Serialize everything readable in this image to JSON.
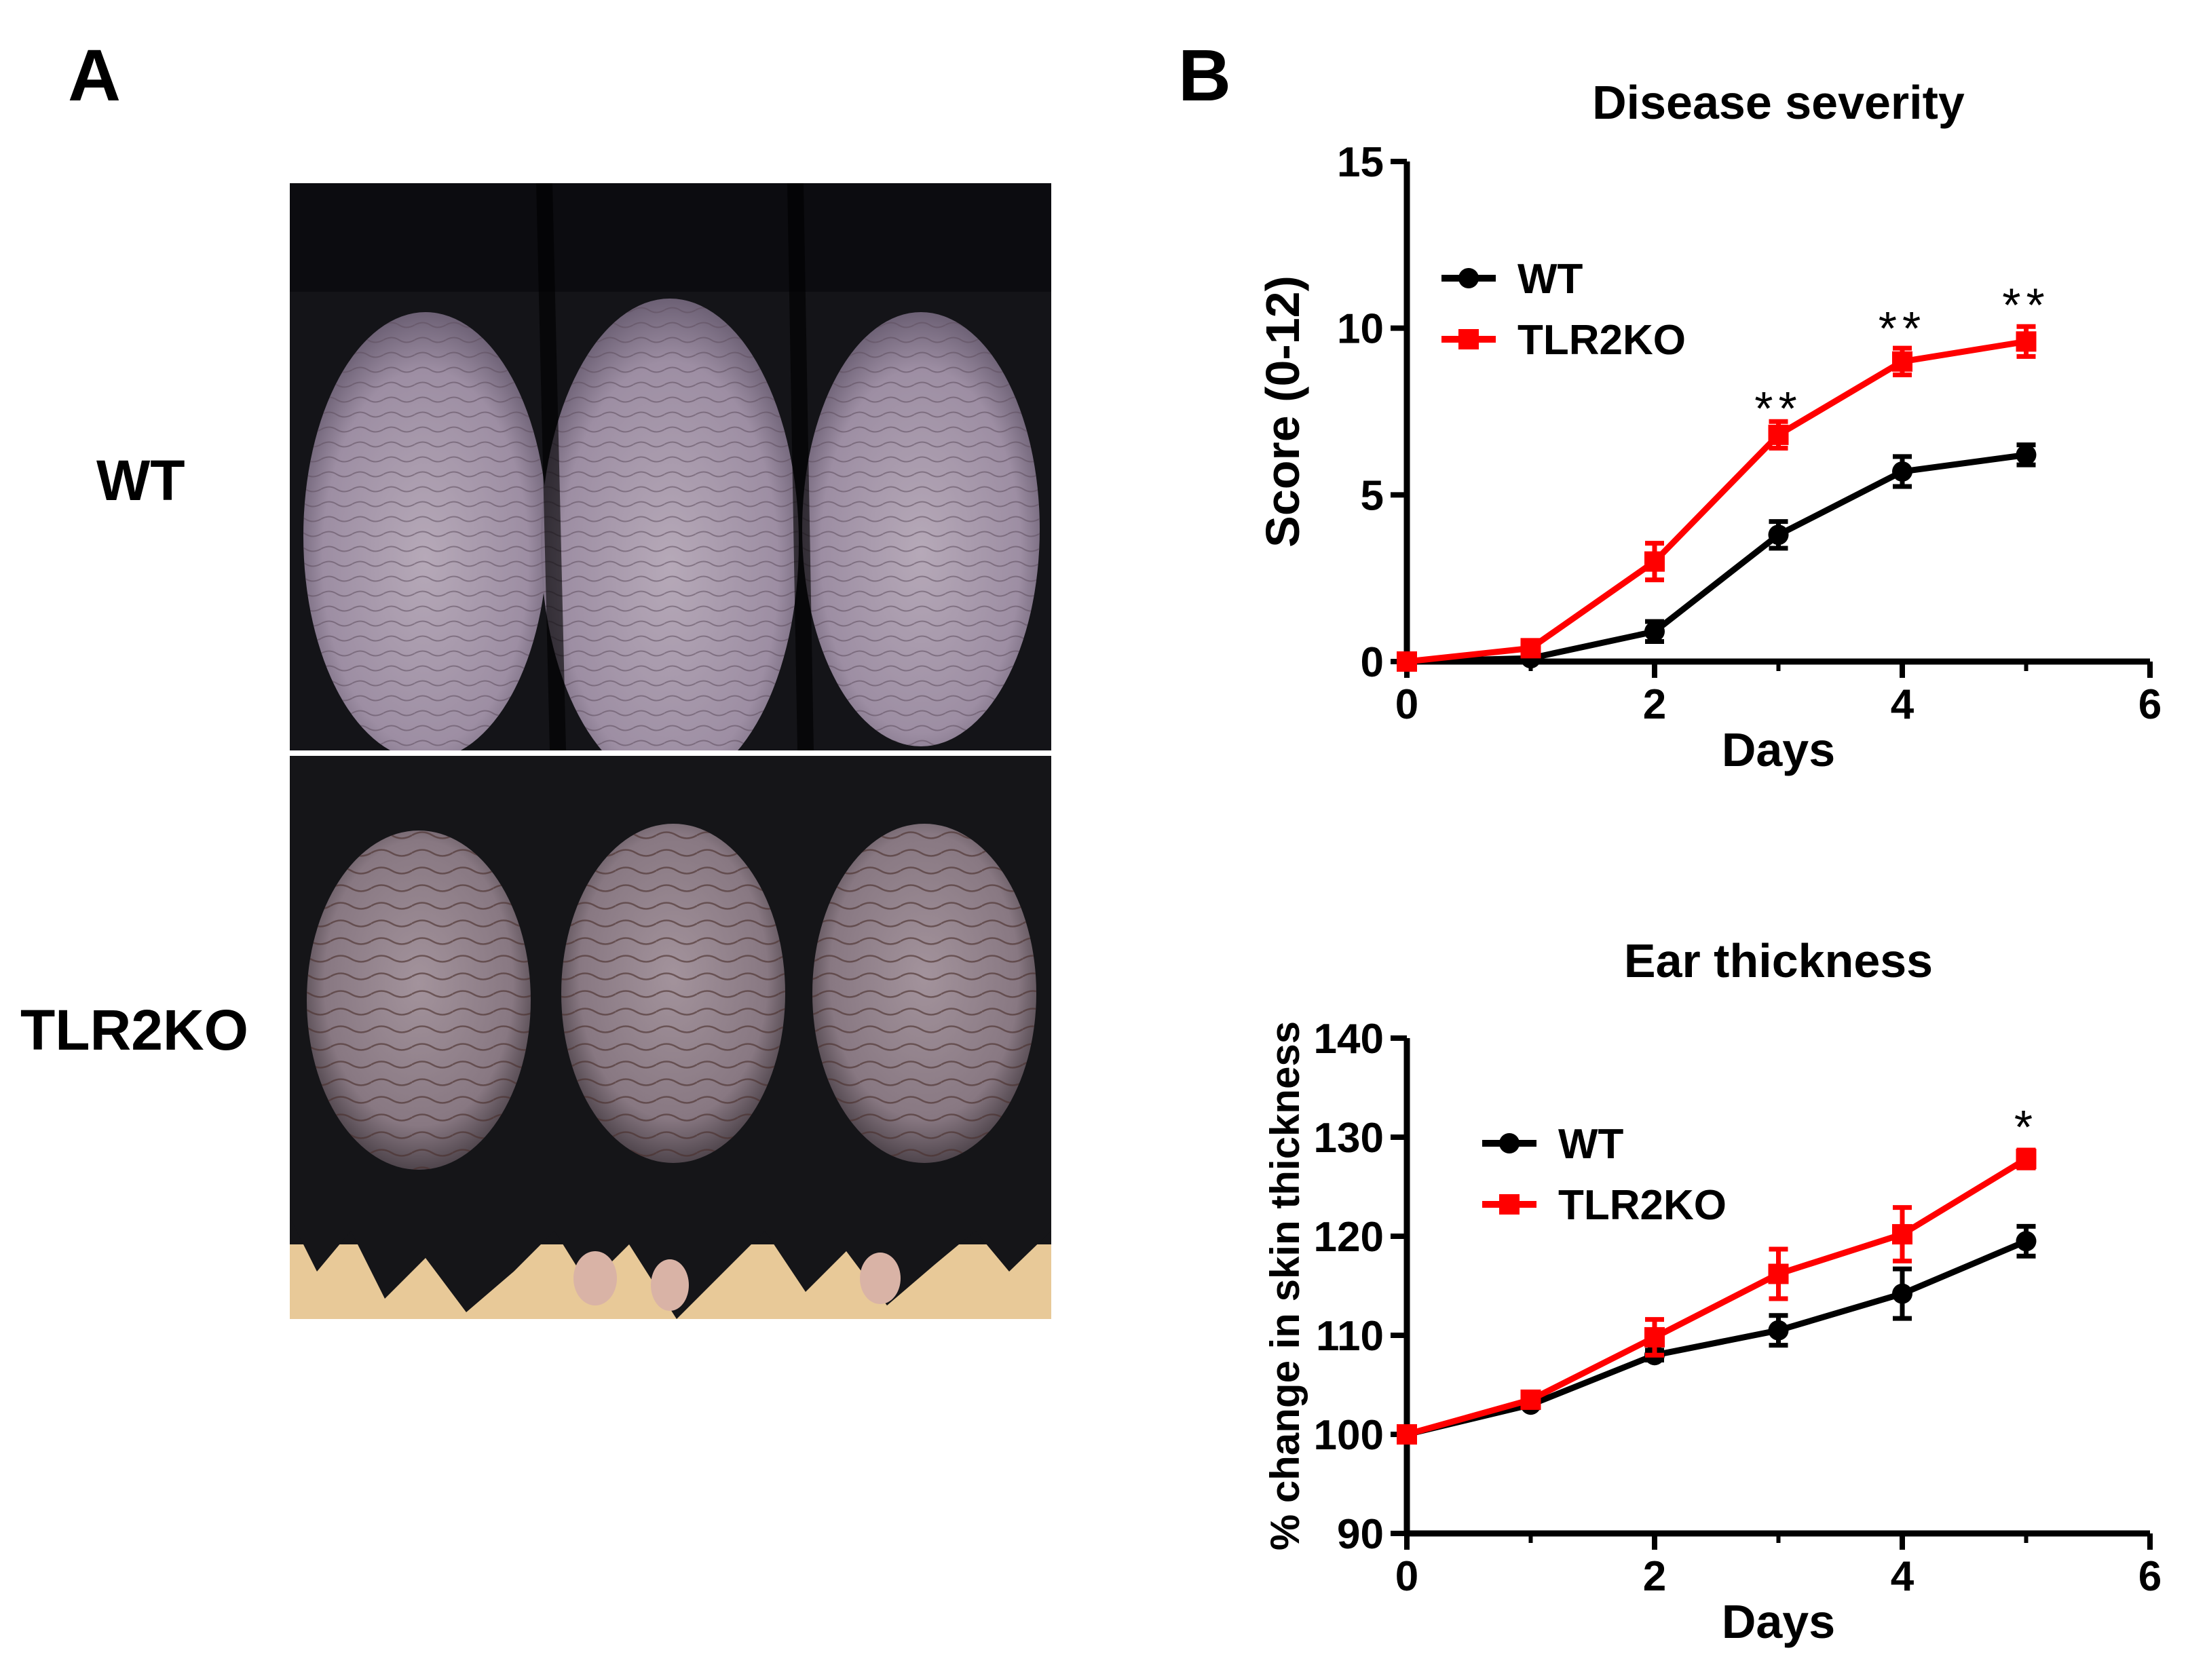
{
  "panels": {
    "a": {
      "letter": "A",
      "row_labels": {
        "wt": "WT",
        "tlr2ko": "TLR2KO"
      }
    },
    "b": {
      "letter": "B"
    }
  },
  "colors": {
    "wt": "#000000",
    "tlr2ko": "#ff0000",
    "fur": "#141418",
    "skin": "#a89aab",
    "background_tan": "#e8c998"
  },
  "chart_data": [
    {
      "type": "line",
      "title": "Disease severity",
      "xlabel": "Days",
      "ylabel": "Score (0-12)",
      "xlim": [
        0,
        6
      ],
      "ylim": [
        0,
        15
      ],
      "xticks": [
        0,
        2,
        4,
        6
      ],
      "yticks": [
        0,
        5,
        10,
        15
      ],
      "legend": "top-left",
      "x": [
        0,
        1,
        2,
        3,
        4,
        5
      ],
      "series": [
        {
          "name": "WT",
          "color": "#000000",
          "marker": "circle",
          "values": [
            0,
            0.1,
            0.9,
            3.8,
            5.7,
            6.2
          ],
          "errors": [
            0,
            0.05,
            0.3,
            0.4,
            0.45,
            0.3
          ]
        },
        {
          "name": "TLR2KO",
          "color": "#ff0000",
          "marker": "square",
          "values": [
            0,
            0.4,
            3.0,
            6.8,
            9.0,
            9.6
          ],
          "errors": [
            0,
            0.1,
            0.55,
            0.4,
            0.4,
            0.45
          ]
        }
      ],
      "annotations": [
        {
          "x": 3,
          "y": 7.8,
          "text": "**"
        },
        {
          "x": 4,
          "y": 10.2,
          "text": "**"
        },
        {
          "x": 5,
          "y": 10.9,
          "text": "**"
        }
      ]
    },
    {
      "type": "line",
      "title": "Ear thickness",
      "xlabel": "Days",
      "ylabel": "% change in skin thickness",
      "xlim": [
        0,
        6
      ],
      "ylim": [
        90,
        140
      ],
      "xticks": [
        0,
        2,
        4,
        6
      ],
      "yticks": [
        90,
        100,
        110,
        120,
        130,
        140
      ],
      "legend": "top-left",
      "x": [
        0,
        1,
        2,
        3,
        4,
        5
      ],
      "series": [
        {
          "name": "WT",
          "color": "#000000",
          "marker": "circle",
          "values": [
            100,
            103,
            108,
            110.5,
            114.2,
            119.5
          ],
          "errors": [
            0,
            0.3,
            0.5,
            1.5,
            2.5,
            1.5
          ]
        },
        {
          "name": "TLR2KO",
          "color": "#ff0000",
          "marker": "square",
          "values": [
            100,
            103.5,
            109.8,
            116.2,
            120.2,
            127.8
          ],
          "errors": [
            0,
            0.3,
            1.8,
            2.5,
            2.7,
            0.9
          ]
        }
      ],
      "annotations": [
        {
          "x": 5,
          "y": 131.7,
          "text": "*"
        }
      ]
    }
  ]
}
